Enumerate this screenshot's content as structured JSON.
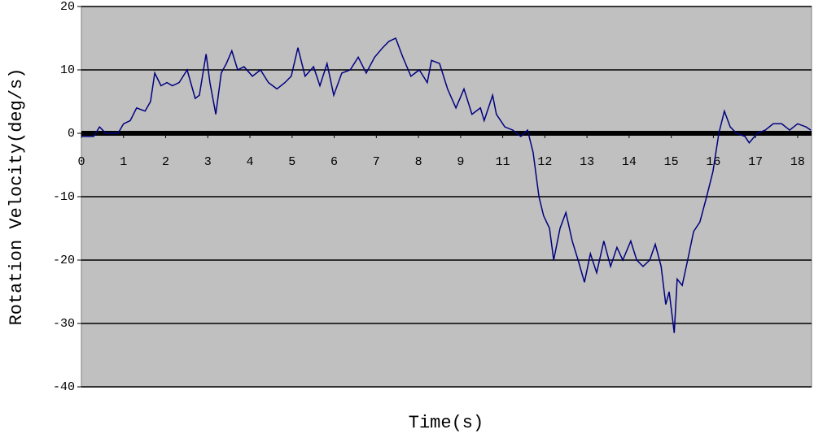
{
  "chart_data": {
    "type": "line",
    "x_label": "Time(s)",
    "y_label": "Rotation Velocity(deg/s)",
    "xlim": [
      0,
      17.33
    ],
    "xticks": [
      0,
      1,
      2,
      3,
      4,
      5,
      6,
      7,
      8,
      9,
      {
        "value": 10,
        "label": "11"
      },
      {
        "value": 11,
        "label": "12"
      },
      {
        "value": 12,
        "label": "13"
      },
      {
        "value": 13,
        "label": "14"
      },
      {
        "value": 14,
        "label": "15"
      },
      {
        "value": 15,
        "label": "16"
      },
      {
        "value": 16,
        "label": "17"
      },
      {
        "value": 17,
        "label": "18"
      }
    ],
    "ylim": [
      -40,
      20
    ],
    "yticks": [
      -40,
      -30,
      -20,
      -10,
      0,
      10,
      20
    ],
    "grid": true,
    "background": "#c0c0c0",
    "x": [
      0,
      0.29,
      0.43,
      0.58,
      0.87,
      1.0,
      1.16,
      1.31,
      1.51,
      1.64,
      1.74,
      1.89,
      2.03,
      2.16,
      2.32,
      2.51,
      2.7,
      2.8,
      2.96,
      3.05,
      3.19,
      3.32,
      3.44,
      3.57,
      3.71,
      3.86,
      4.06,
      4.25,
      4.44,
      4.64,
      4.83,
      4.98,
      5.14,
      5.31,
      5.51,
      5.66,
      5.83,
      5.99,
      6.18,
      6.38,
      6.57,
      6.76,
      6.96,
      7.15,
      7.3,
      7.46,
      7.63,
      7.82,
      8.02,
      8.21,
      8.31,
      8.5,
      8.69,
      8.89,
      9.08,
      9.27,
      9.47,
      9.56,
      9.76,
      9.85,
      10.05,
      10.24,
      10.43,
      10.59,
      10.72,
      10.86,
      10.97,
      11.11,
      11.21,
      11.36,
      11.5,
      11.65,
      11.79,
      11.94,
      12.08,
      12.23,
      12.4,
      12.56,
      12.71,
      12.85,
      13.04,
      13.18,
      13.33,
      13.49,
      13.62,
      13.76,
      13.87,
      13.95,
      14.07,
      14.14,
      14.26,
      14.39,
      14.53,
      14.68,
      14.84,
      14.99,
      15.13,
      15.26,
      15.4,
      15.55,
      15.75,
      15.85,
      16.04,
      16.23,
      16.42,
      16.62,
      16.81,
      17.0,
      17.2,
      17.31
    ],
    "series": [
      {
        "color": "#000080",
        "values": [
          -0.5,
          -0.5,
          1,
          0,
          0,
          1.5,
          2,
          4,
          3.5,
          5,
          9.5,
          7.5,
          8,
          7.5,
          8,
          10,
          5.5,
          6,
          12.5,
          8,
          3,
          9.5,
          11,
          13,
          10,
          10.5,
          9,
          10,
          8,
          7,
          8,
          9,
          13.5,
          9,
          10.5,
          7.5,
          11,
          6,
          9.5,
          10,
          12,
          9.5,
          12,
          13.5,
          14.5,
          15,
          12,
          9,
          10,
          8,
          11.5,
          11,
          7,
          4,
          7,
          3,
          4,
          2,
          6,
          3,
          1,
          0.5,
          -0.5,
          0.5,
          -3,
          -10,
          -13,
          -15,
          -20,
          -15,
          -12.5,
          -17,
          -20,
          -23.5,
          -19,
          -22,
          -17,
          -21,
          -18,
          -20,
          -17,
          -20,
          -21,
          -20,
          -17.5,
          -21,
          -27,
          -25,
          -31.5,
          -23,
          -24,
          -20,
          -15.5,
          -14,
          -10,
          -6,
          0,
          3.5,
          1,
          0,
          -0.5,
          -1.5,
          0,
          0.5,
          1.5,
          1.5,
          0.5,
          1.5,
          1,
          0.5
        ]
      }
    ]
  }
}
